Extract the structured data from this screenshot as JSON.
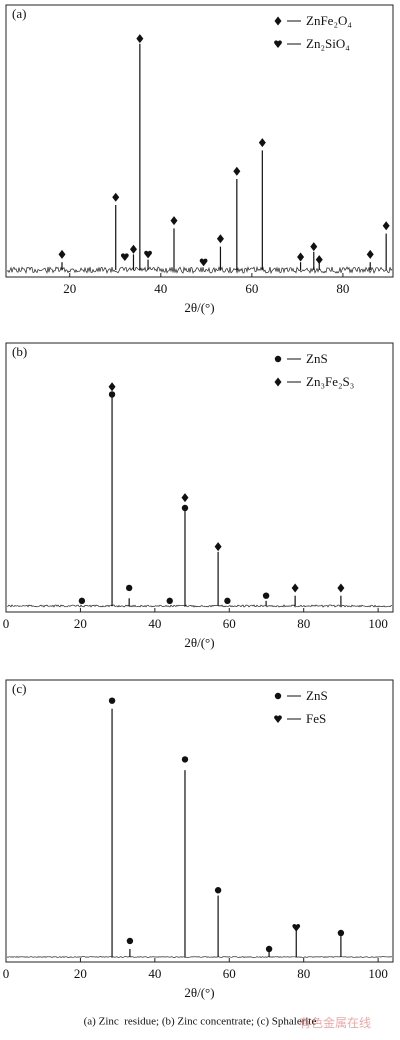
{
  "chart_data": [
    {
      "type": "stem",
      "label": "(a)",
      "xlabel": "2θ/(°)",
      "xlim": [
        6,
        91
      ],
      "xticks": [
        20,
        40,
        60,
        80
      ],
      "ylim": [
        0,
        100
      ],
      "legend": "upper right",
      "x": [
        18.3,
        30.1,
        34.0,
        35.4,
        37.2,
        42.9,
        53.1,
        56.7,
        62.3,
        70.7,
        73.6,
        74.8,
        86.0,
        89.5
      ],
      "values": [
        3,
        25,
        6,
        87,
        4,
        16,
        9,
        35,
        46,
        3,
        7,
        3,
        3,
        14
      ],
      "series": [
        {
          "name": "ZnFe₂O₄",
          "marker": "diamond",
          "color": "#111111",
          "x": [
            18.3,
            30.1,
            34.0,
            35.4,
            42.9,
            53.1,
            56.7,
            62.3,
            70.7,
            73.6,
            74.8,
            86.0,
            89.5
          ],
          "values": [
            6,
            28,
            8,
            89,
            19,
            12,
            38,
            49,
            5,
            9,
            4,
            6,
            17
          ]
        },
        {
          "name": "Zn₂SiO₄",
          "marker": "heart",
          "color": "#111111",
          "x": [
            32.1,
            37.2,
            49.4
          ],
          "values": [
            5,
            6,
            3
          ]
        }
      ]
    },
    {
      "type": "stem",
      "label": "(b)",
      "xlabel": "2θ/(°)",
      "xlim": [
        0,
        104
      ],
      "xticks": [
        0,
        20,
        40,
        60,
        80,
        100
      ],
      "ylim": [
        0,
        100
      ],
      "legend": "upper right",
      "x": [
        28.5,
        33.1,
        48.1,
        57.0,
        69.9,
        77.7,
        90.0
      ],
      "values": [
        82,
        3,
        37,
        21,
        2,
        4,
        4
      ],
      "series": [
        {
          "name": "ZnS",
          "marker": "circle",
          "color": "#111111",
          "x": [
            20.4,
            28.5,
            33.1,
            44.0,
            48.1,
            59.5,
            69.9
          ],
          "values": [
            2,
            82,
            7,
            2,
            38,
            2,
            4
          ]
        },
        {
          "name": "Zn₃Fe₂S₃",
          "marker": "diamond",
          "color": "#111111",
          "x": [
            28.5,
            48.1,
            57.0,
            77.7,
            90.0
          ],
          "values": [
            85,
            42,
            23,
            7,
            7
          ]
        }
      ]
    },
    {
      "type": "stem",
      "label": "(c)",
      "xlabel": "2θ/(°)",
      "xlim": [
        0,
        104
      ],
      "xticks": [
        0,
        20,
        40,
        60,
        80,
        100
      ],
      "ylim": [
        0,
        100
      ],
      "legend": "upper right",
      "x": [
        28.5,
        33.3,
        48.1,
        57.0,
        70.7,
        78.0,
        90.0
      ],
      "values": [
        93,
        3,
        70,
        23,
        2,
        11,
        10
      ],
      "series": [
        {
          "name": "ZnS",
          "marker": "circle",
          "color": "#111111",
          "x": [
            28.5,
            33.3,
            48.1,
            57.0,
            70.7,
            90.0
          ],
          "values": [
            96,
            6,
            74,
            25,
            3,
            9
          ]
        },
        {
          "name": "FeS",
          "marker": "heart",
          "color": "#111111",
          "x": [
            78.0
          ],
          "values": [
            11
          ]
        }
      ]
    }
  ],
  "caption": "(a) Zinc  residue; (b) Zinc concentrate; (c) Sphalerite",
  "watermark": "有色金属在线"
}
